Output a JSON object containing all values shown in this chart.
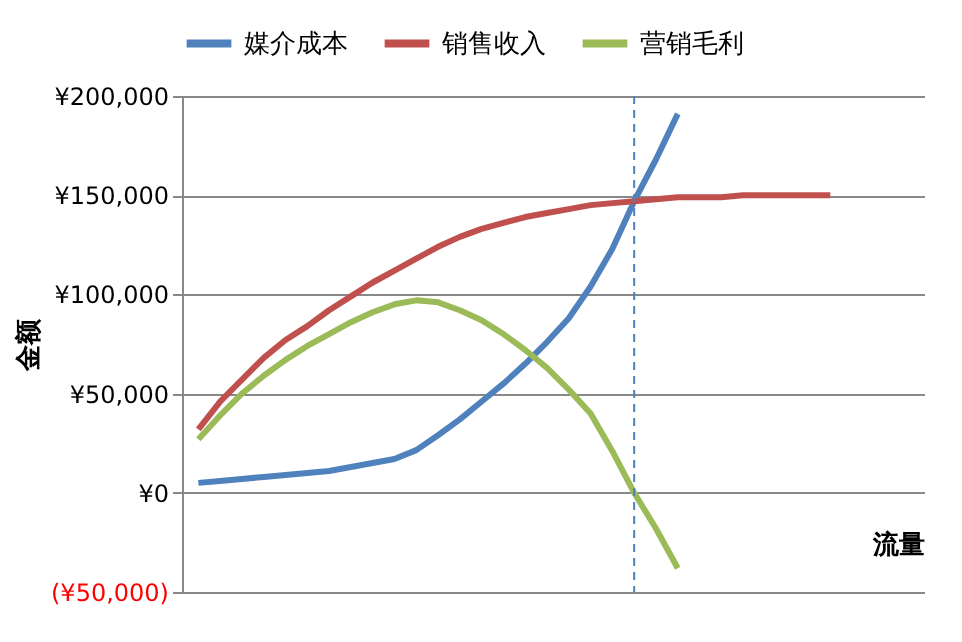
{
  "chart_data": {
    "type": "line",
    "xlabel": "流量",
    "ylabel": "金额",
    "categories": [
      null,
      null,
      null,
      null,
      null,
      null,
      null,
      null,
      null,
      null,
      null,
      null,
      null,
      null,
      null,
      null,
      null,
      null,
      null,
      null,
      null,
      null,
      null,
      null,
      null,
      null,
      null,
      null,
      null,
      null
    ],
    "ylim": [
      -50000,
      200000
    ],
    "tick_labels": "y",
    "yticks": [
      {
        "value": -50000,
        "label": "(¥50,000)"
      },
      {
        "value": 0,
        "label": "¥0"
      },
      {
        "value": 50000,
        "label": "¥50,000"
      },
      {
        "value": 100000,
        "label": "¥100,000"
      },
      {
        "value": 150000,
        "label": "¥150,000"
      },
      {
        "value": 200000,
        "label": "¥200,000"
      }
    ],
    "grid": "y",
    "legend": "top",
    "marker": "none",
    "line_style": "solid",
    "series": [
      {
        "name": "媒介成本",
        "color": "#4f81bd",
        "values": [
          5000,
          6000,
          7000,
          8000,
          9000,
          10000,
          11000,
          13000,
          15000,
          17000,
          21500,
          29000,
          37000,
          46000,
          55000,
          65000,
          76000,
          88000,
          104000,
          123000,
          147000,
          168000,
          191000,
          null,
          null,
          null,
          null,
          null,
          null,
          null
        ]
      },
      {
        "name": "销售收入",
        "color": "#c0504d",
        "values": [
          32000,
          46000,
          57000,
          68000,
          77000,
          84000,
          92000,
          99000,
          106000,
          112000,
          118000,
          124000,
          129000,
          133000,
          136000,
          139000,
          141000,
          143000,
          145000,
          146000,
          147000,
          148000,
          149000,
          149000,
          149000,
          150000,
          150000,
          150000,
          150000,
          150000
        ]
      },
      {
        "name": "营销毛利",
        "color": "#9bbb59",
        "values": [
          27000,
          39000,
          50000,
          59000,
          67000,
          74000,
          80000,
          86000,
          91000,
          95000,
          97000,
          96000,
          92000,
          87000,
          80000,
          72000,
          63000,
          52000,
          40000,
          21000,
          0,
          -18000,
          -38000,
          null,
          null,
          null,
          null,
          null,
          null,
          null
        ]
      }
    ]
  }
}
